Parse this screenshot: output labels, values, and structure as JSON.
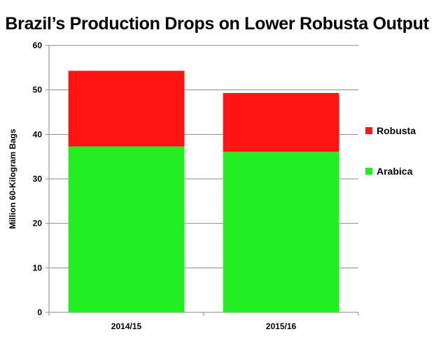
{
  "chart_data": {
    "type": "bar",
    "stacked": true,
    "title": "Brazil’s Production Drops on Lower Robusta Output",
    "xlabel": "",
    "ylabel": "Million 60-Kilogram Bags",
    "categories": [
      "2014/15",
      "2015/16"
    ],
    "series": [
      {
        "name": "Arabica",
        "color": "#22ee22",
        "values": [
          37.3,
          36.1
        ]
      },
      {
        "name": "Robusta",
        "color": "#ff1414",
        "values": [
          17.0,
          13.2
        ]
      }
    ],
    "ylim": [
      0,
      60
    ],
    "yticks": [
      0,
      10,
      20,
      30,
      40,
      50,
      60
    ],
    "grid": true,
    "legend_position": "right",
    "legend_order": [
      "Robusta",
      "Arabica"
    ]
  }
}
